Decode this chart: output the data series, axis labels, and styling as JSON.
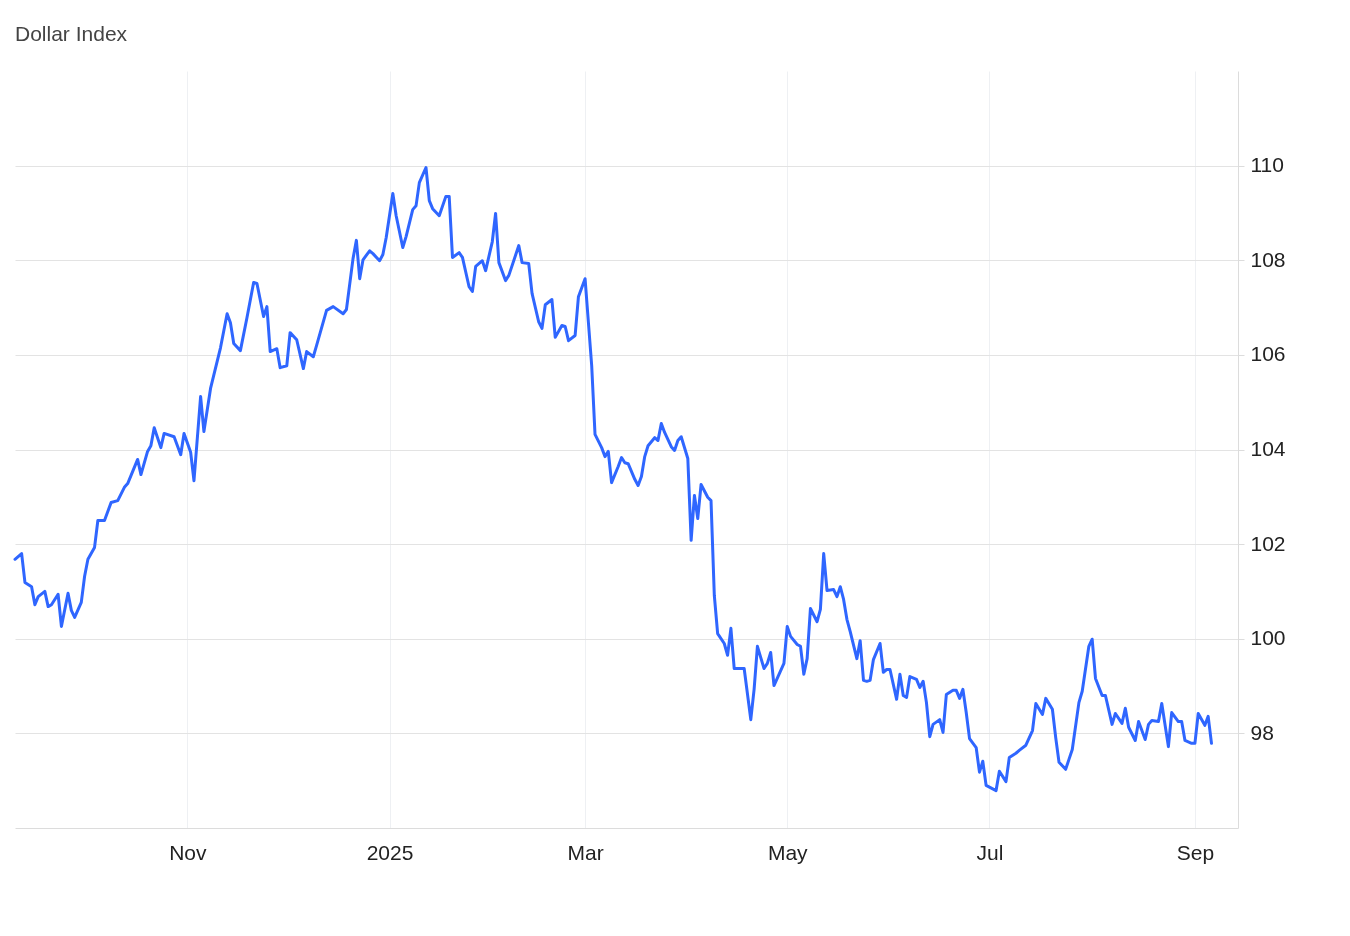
{
  "chart_data": {
    "type": "line",
    "title": "Dollar Index",
    "x": [
      "2024-09-10",
      "2024-09-12",
      "2024-09-13",
      "2024-09-15",
      "2024-09-16",
      "2024-09-17",
      "2024-09-19",
      "2024-09-20",
      "2024-09-21",
      "2024-09-23",
      "2024-09-24",
      "2024-09-26",
      "2024-09-27",
      "2024-09-28",
      "2024-09-30",
      "2024-10-01",
      "2024-10-02",
      "2024-10-04",
      "2024-10-05",
      "2024-10-07",
      "2024-10-09",
      "2024-10-11",
      "2024-10-13",
      "2024-10-14",
      "2024-10-17",
      "2024-10-18",
      "2024-10-20",
      "2024-10-21",
      "2024-10-22",
      "2024-10-24",
      "2024-10-25",
      "2024-10-28",
      "2024-10-29",
      "2024-10-30",
      "2024-10-31",
      "2024-11-02",
      "2024-11-03",
      "2024-11-05",
      "2024-11-06",
      "2024-11-08",
      "2024-11-11",
      "2024-11-13",
      "2024-11-14",
      "2024-11-15",
      "2024-11-17",
      "2024-11-19",
      "2024-11-21",
      "2024-11-22",
      "2024-11-24",
      "2024-11-25",
      "2024-11-26",
      "2024-11-28",
      "2024-11-29",
      "2024-12-01",
      "2024-12-02",
      "2024-12-04",
      "2024-12-06",
      "2024-12-07",
      "2024-12-09",
      "2024-12-10",
      "2024-12-13",
      "2024-12-15",
      "2024-12-18",
      "2024-12-19",
      "2024-12-21",
      "2024-12-22",
      "2024-12-23",
      "2024-12-24",
      "2024-12-26",
      "2024-12-27",
      "2024-12-29",
      "2024-12-30",
      "2024-12-31",
      "2025-01-02",
      "2025-01-03",
      "2025-01-05",
      "2025-01-06",
      "2025-01-08",
      "2025-01-09",
      "2025-01-10",
      "2025-01-12",
      "2025-01-13",
      "2025-01-14",
      "2025-01-16",
      "2025-01-18",
      "2025-01-19",
      "2025-01-20",
      "2025-01-22",
      "2025-01-23",
      "2025-01-25",
      "2025-01-26",
      "2025-01-27",
      "2025-01-29",
      "2025-01-30",
      "2025-02-01",
      "2025-02-02",
      "2025-02-03",
      "2025-02-05",
      "2025-02-06",
      "2025-02-09",
      "2025-02-10",
      "2025-02-12",
      "2025-02-13",
      "2025-02-15",
      "2025-02-16",
      "2025-02-17",
      "2025-02-19",
      "2025-02-20",
      "2025-02-22",
      "2025-02-23",
      "2025-02-24",
      "2025-02-26",
      "2025-02-27",
      "2025-03-01",
      "2025-03-03",
      "2025-03-04",
      "2025-03-06",
      "2025-03-07",
      "2025-03-08",
      "2025-03-09",
      "2025-03-11",
      "2025-03-12",
      "2025-03-13",
      "2025-03-14",
      "2025-03-16",
      "2025-03-17",
      "2025-03-18",
      "2025-03-19",
      "2025-03-20",
      "2025-03-22",
      "2025-03-23",
      "2025-03-24",
      "2025-03-25",
      "2025-03-27",
      "2025-03-28",
      "2025-03-29",
      "2025-03-30",
      "2025-04-01",
      "2025-04-02",
      "2025-04-03",
      "2025-04-04",
      "2025-04-05",
      "2025-04-07",
      "2025-04-08",
      "2025-04-09",
      "2025-04-10",
      "2025-04-12",
      "2025-04-13",
      "2025-04-14",
      "2025-04-15",
      "2025-04-18",
      "2025-04-20",
      "2025-04-21",
      "2025-04-22",
      "2025-04-24",
      "2025-04-25",
      "2025-04-26",
      "2025-04-27",
      "2025-04-30",
      "2025-05-01",
      "2025-05-02",
      "2025-05-04",
      "2025-05-05",
      "2025-05-06",
      "2025-05-07",
      "2025-05-08",
      "2025-05-10",
      "2025-05-11",
      "2025-05-12",
      "2025-05-13",
      "2025-05-15",
      "2025-05-16",
      "2025-05-17",
      "2025-05-18",
      "2025-05-19",
      "2025-05-20",
      "2025-05-22",
      "2025-05-23",
      "2025-05-24",
      "2025-05-25",
      "2025-05-26",
      "2025-05-27",
      "2025-05-29",
      "2025-05-30",
      "2025-05-31",
      "2025-06-01",
      "2025-06-03",
      "2025-06-04",
      "2025-06-05",
      "2025-06-06",
      "2025-06-07",
      "2025-06-09",
      "2025-06-10",
      "2025-06-11",
      "2025-06-12",
      "2025-06-13",
      "2025-06-14",
      "2025-06-16",
      "2025-06-17",
      "2025-06-18",
      "2025-06-20",
      "2025-06-21",
      "2025-06-22",
      "2025-06-23",
      "2025-06-24",
      "2025-06-25",
      "2025-06-27",
      "2025-06-28",
      "2025-06-29",
      "2025-06-30",
      "2025-07-03",
      "2025-07-04",
      "2025-07-06",
      "2025-07-07",
      "2025-07-09",
      "2025-07-10",
      "2025-07-12",
      "2025-07-14",
      "2025-07-15",
      "2025-07-17",
      "2025-07-18",
      "2025-07-20",
      "2025-07-21",
      "2025-07-22",
      "2025-07-24",
      "2025-07-25",
      "2025-07-26",
      "2025-07-28",
      "2025-07-29",
      "2025-07-31",
      "2025-08-01",
      "2025-08-02",
      "2025-08-04",
      "2025-08-05",
      "2025-08-07",
      "2025-08-08",
      "2025-08-10",
      "2025-08-11",
      "2025-08-12",
      "2025-08-14",
      "2025-08-15",
      "2025-08-17",
      "2025-08-18",
      "2025-08-19",
      "2025-08-21",
      "2025-08-22",
      "2025-08-24",
      "2025-08-25",
      "2025-08-27",
      "2025-08-28",
      "2025-08-29",
      "2025-08-31",
      "2025-09-01",
      "2025-09-02",
      "2025-09-04",
      "2025-09-05",
      "2025-09-06"
    ],
    "series": [
      {
        "color": "#2f66ff",
        "values": [
          101.68,
          101.8,
          101.19,
          101.1,
          100.72,
          100.89,
          101.0,
          100.68,
          100.72,
          100.94,
          100.26,
          100.96,
          100.6,
          100.45,
          100.77,
          101.32,
          101.68,
          101.93,
          102.5,
          102.5,
          102.88,
          102.92,
          103.2,
          103.28,
          103.79,
          103.47,
          103.96,
          104.08,
          104.46,
          104.04,
          104.34,
          104.27,
          104.08,
          103.89,
          104.34,
          103.94,
          103.34,
          105.12,
          104.38,
          105.29,
          106.15,
          106.87,
          106.68,
          106.24,
          106.09,
          106.79,
          107.53,
          107.51,
          106.81,
          107.02,
          106.07,
          106.13,
          105.73,
          105.77,
          106.47,
          106.32,
          105.71,
          106.07,
          105.96,
          106.2,
          106.94,
          107.02,
          106.87,
          106.96,
          108.04,
          108.42,
          107.61,
          108.01,
          108.2,
          108.14,
          107.99,
          108.12,
          108.48,
          109.41,
          108.94,
          108.27,
          108.5,
          109.07,
          109.15,
          109.64,
          109.96,
          109.26,
          109.09,
          108.94,
          109.35,
          109.35,
          108.06,
          108.16,
          108.06,
          107.44,
          107.34,
          107.87,
          107.99,
          107.78,
          108.39,
          108.99,
          107.95,
          107.57,
          107.68,
          108.31,
          107.95,
          107.93,
          107.3,
          106.7,
          106.56,
          107.06,
          107.17,
          106.37,
          106.62,
          106.6,
          106.3,
          106.41,
          107.23,
          107.61,
          105.77,
          104.32,
          104.04,
          103.85,
          103.96,
          103.3,
          103.64,
          103.83,
          103.72,
          103.7,
          103.37,
          103.24,
          103.43,
          103.85,
          104.08,
          104.25,
          104.19,
          104.55,
          104.36,
          104.06,
          103.98,
          104.19,
          104.27,
          103.81,
          102.08,
          103.03,
          102.54,
          103.26,
          102.99,
          102.92,
          100.91,
          100.11,
          99.9,
          99.65,
          100.22,
          99.37,
          99.37,
          98.29,
          98.93,
          99.84,
          99.37,
          99.48,
          99.71,
          99.01,
          99.48,
          100.26,
          100.05,
          99.88,
          99.84,
          99.25,
          99.58,
          100.64,
          100.36,
          100.62,
          101.8,
          101.02,
          101.04,
          100.89,
          101.1,
          100.83,
          100.41,
          100.15,
          99.58,
          99.96,
          99.12,
          99.1,
          99.12,
          99.56,
          99.9,
          99.29,
          99.35,
          99.35,
          98.72,
          99.25,
          98.8,
          98.76,
          99.2,
          99.14,
          98.97,
          99.1,
          98.65,
          97.93,
          98.19,
          98.29,
          98.02,
          98.82,
          98.91,
          98.91,
          98.74,
          98.93,
          98.44,
          97.89,
          97.7,
          97.18,
          97.41,
          96.9,
          96.79,
          97.2,
          96.98,
          97.49,
          97.58,
          97.64,
          97.75,
          98.06,
          98.63,
          98.4,
          98.74,
          98.51,
          97.91,
          97.39,
          97.24,
          97.45,
          97.66,
          98.65,
          98.89,
          99.84,
          99.99,
          99.16,
          98.8,
          98.8,
          98.19,
          98.42,
          98.21,
          98.53,
          98.13,
          97.85,
          98.25,
          97.87,
          98.19,
          98.27,
          98.25,
          98.63,
          97.72,
          98.44,
          98.25,
          98.25,
          97.85,
          97.79,
          97.79,
          98.42,
          98.17,
          98.36,
          97.79
        ]
      }
    ],
    "xlim": [
      "2024-09-10",
      "2025-09-14"
    ],
    "xticks": [
      {
        "value": "2024-11-01",
        "label": "Nov"
      },
      {
        "value": "2025-01-01",
        "label": "2025"
      },
      {
        "value": "2025-03-01",
        "label": "Mar"
      },
      {
        "value": "2025-05-01",
        "label": "May"
      },
      {
        "value": "2025-07-01",
        "label": "Jul"
      },
      {
        "value": "2025-09-01",
        "label": "Sep"
      }
    ],
    "ylim": [
      96,
      112
    ],
    "yticks": [
      98,
      100,
      102,
      104,
      106,
      108,
      110
    ],
    "grid": true,
    "line_style": "solid",
    "marker": "none"
  }
}
